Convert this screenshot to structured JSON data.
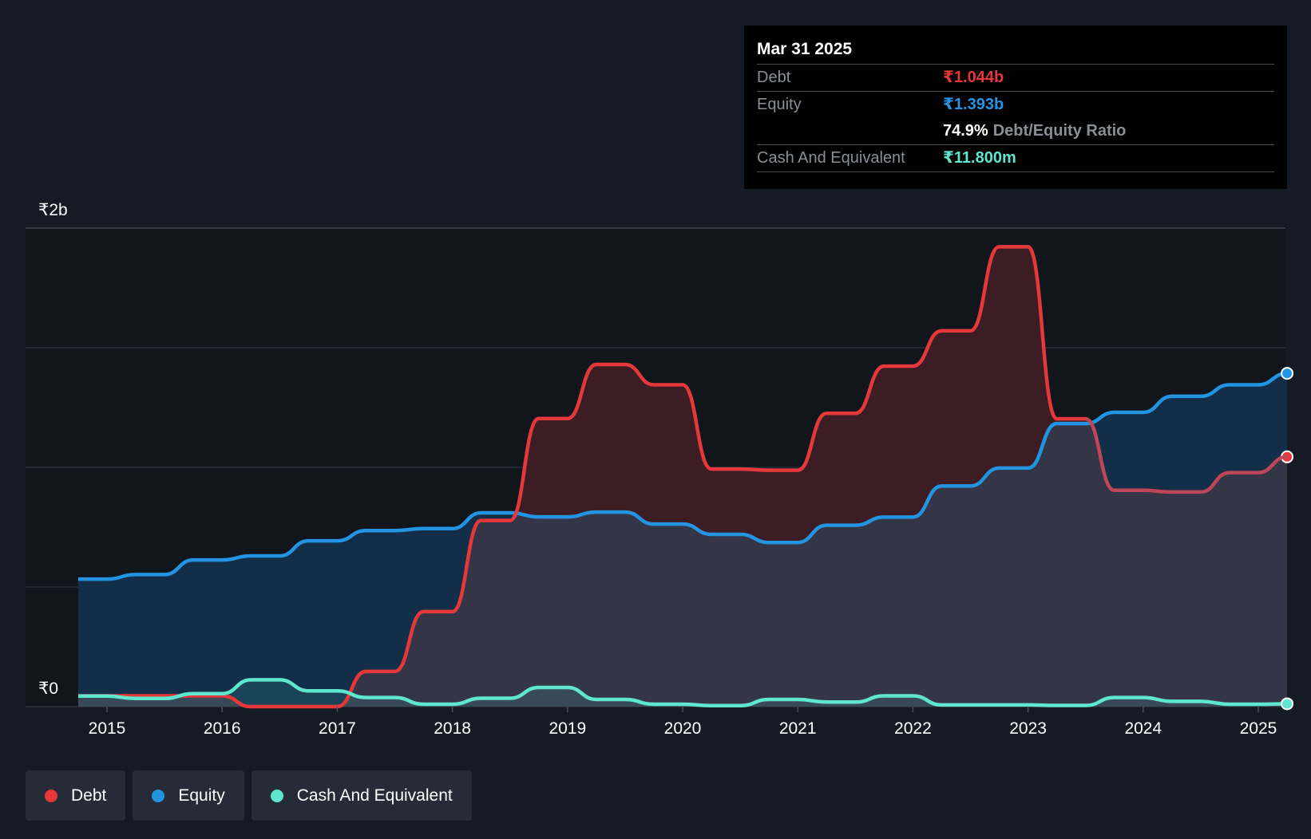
{
  "tooltip": {
    "date": "Mar 31 2025",
    "debt_label": "Debt",
    "debt_value": "₹1.044b",
    "equity_label": "Equity",
    "equity_value": "₹1.393b",
    "ratio_value": "74.9%",
    "ratio_label": "Debt/Equity Ratio",
    "cash_label": "Cash And Equivalent",
    "cash_value": "₹11.800m"
  },
  "legend": [
    {
      "label": "Debt",
      "color": "#e5383b"
    },
    {
      "label": "Equity",
      "color": "#2394e2"
    },
    {
      "label": "Cash And Equivalent",
      "color": "#5ee6cf"
    }
  ],
  "colors": {
    "debt": "#e5383b",
    "equity": "#2394e2",
    "cash": "#5ee6cf",
    "debt_fill": "#3d1d24",
    "equity_fill": "#132e48",
    "overlap_fill": "#343547"
  },
  "chart_data": {
    "type": "area",
    "title": "",
    "xlabel": "",
    "ylabel": "",
    "ylim": [
      0,
      2.0
    ],
    "xlim": [
      2014.3,
      2025.25
    ],
    "y_unit": "₹ billions",
    "y_tick_labels": [
      {
        "value": 2.0,
        "label": "₹2b"
      },
      {
        "value": 0,
        "label": "₹0"
      }
    ],
    "y_gridlines": [
      0,
      0.5,
      1.0,
      1.5,
      2.0
    ],
    "x_ticks": [
      {
        "value": 2015,
        "label": "2015"
      },
      {
        "value": 2016,
        "label": "2016"
      },
      {
        "value": 2017,
        "label": "2017"
      },
      {
        "value": 2018,
        "label": "2018"
      },
      {
        "value": 2019,
        "label": "2019"
      },
      {
        "value": 2020,
        "label": "2020"
      },
      {
        "value": 2021,
        "label": "2021"
      },
      {
        "value": 2022,
        "label": "2022"
      },
      {
        "value": 2023,
        "label": "2023"
      },
      {
        "value": 2024,
        "label": "2024"
      },
      {
        "value": 2025,
        "label": "2025"
      }
    ],
    "series": [
      {
        "name": "Debt",
        "points": [
          [
            2014.75,
            0.045
          ],
          [
            2015.25,
            0.045
          ],
          [
            2015.5,
            0.045
          ],
          [
            2016.0,
            0.045
          ],
          [
            2016.25,
            0.0
          ],
          [
            2017.0,
            0.0
          ],
          [
            2017.25,
            0.147
          ],
          [
            2017.5,
            0.147
          ],
          [
            2017.75,
            0.397
          ],
          [
            2018.0,
            0.397
          ],
          [
            2018.25,
            0.778
          ],
          [
            2018.5,
            0.778
          ],
          [
            2018.75,
            1.204
          ],
          [
            2019.0,
            1.204
          ],
          [
            2019.25,
            1.43
          ],
          [
            2019.5,
            1.43
          ],
          [
            2019.75,
            1.345
          ],
          [
            2020.0,
            1.345
          ],
          [
            2020.25,
            0.993
          ],
          [
            2020.5,
            0.993
          ],
          [
            2020.75,
            0.988
          ],
          [
            2021.0,
            0.988
          ],
          [
            2021.25,
            1.226
          ],
          [
            2021.5,
            1.226
          ],
          [
            2021.75,
            1.423
          ],
          [
            2022.0,
            1.423
          ],
          [
            2022.25,
            1.571
          ],
          [
            2022.5,
            1.571
          ],
          [
            2022.75,
            1.922
          ],
          [
            2023.0,
            1.922
          ],
          [
            2023.25,
            1.203
          ],
          [
            2023.5,
            1.203
          ],
          [
            2023.75,
            0.904
          ],
          [
            2024.0,
            0.904
          ],
          [
            2024.25,
            0.897
          ],
          [
            2024.5,
            0.897
          ],
          [
            2024.75,
            0.978
          ],
          [
            2025.0,
            0.978
          ],
          [
            2025.25,
            1.044
          ]
        ]
      },
      {
        "name": "Equity",
        "points": [
          [
            2014.75,
            0.533
          ],
          [
            2015.0,
            0.533
          ],
          [
            2015.25,
            0.552
          ],
          [
            2015.5,
            0.552
          ],
          [
            2015.75,
            0.613
          ],
          [
            2016.0,
            0.613
          ],
          [
            2016.25,
            0.63
          ],
          [
            2016.5,
            0.63
          ],
          [
            2016.75,
            0.693
          ],
          [
            2017.0,
            0.693
          ],
          [
            2017.25,
            0.736
          ],
          [
            2017.5,
            0.736
          ],
          [
            2017.75,
            0.744
          ],
          [
            2018.0,
            0.744
          ],
          [
            2018.25,
            0.81
          ],
          [
            2018.5,
            0.81
          ],
          [
            2018.75,
            0.793
          ],
          [
            2019.0,
            0.793
          ],
          [
            2019.25,
            0.813
          ],
          [
            2019.5,
            0.813
          ],
          [
            2019.75,
            0.763
          ],
          [
            2020.0,
            0.763
          ],
          [
            2020.25,
            0.72
          ],
          [
            2020.5,
            0.72
          ],
          [
            2020.75,
            0.686
          ],
          [
            2021.0,
            0.686
          ],
          [
            2021.25,
            0.758
          ],
          [
            2021.5,
            0.758
          ],
          [
            2021.75,
            0.792
          ],
          [
            2022.0,
            0.792
          ],
          [
            2022.25,
            0.922
          ],
          [
            2022.5,
            0.922
          ],
          [
            2022.75,
            0.997
          ],
          [
            2023.0,
            0.997
          ],
          [
            2023.25,
            1.183
          ],
          [
            2023.5,
            1.183
          ],
          [
            2023.75,
            1.23
          ],
          [
            2024.0,
            1.23
          ],
          [
            2024.25,
            1.297
          ],
          [
            2024.5,
            1.297
          ],
          [
            2024.75,
            1.345
          ],
          [
            2025.0,
            1.345
          ],
          [
            2025.25,
            1.393
          ]
        ]
      },
      {
        "name": "Cash And Equivalent",
        "points": [
          [
            2014.75,
            0.044
          ],
          [
            2015.0,
            0.044
          ],
          [
            2015.25,
            0.034
          ],
          [
            2015.5,
            0.034
          ],
          [
            2015.75,
            0.054
          ],
          [
            2016.0,
            0.054
          ],
          [
            2016.25,
            0.112
          ],
          [
            2016.5,
            0.112
          ],
          [
            2016.75,
            0.066
          ],
          [
            2017.0,
            0.066
          ],
          [
            2017.25,
            0.038
          ],
          [
            2017.5,
            0.038
          ],
          [
            2017.75,
            0.01
          ],
          [
            2018.0,
            0.01
          ],
          [
            2018.25,
            0.035
          ],
          [
            2018.5,
            0.035
          ],
          [
            2018.75,
            0.08
          ],
          [
            2019.0,
            0.08
          ],
          [
            2019.25,
            0.03
          ],
          [
            2019.5,
            0.03
          ],
          [
            2019.75,
            0.01
          ],
          [
            2020.0,
            0.01
          ],
          [
            2020.25,
            0.004
          ],
          [
            2020.5,
            0.004
          ],
          [
            2020.75,
            0.03
          ],
          [
            2021.0,
            0.03
          ],
          [
            2021.25,
            0.019
          ],
          [
            2021.5,
            0.019
          ],
          [
            2021.75,
            0.045
          ],
          [
            2022.0,
            0.045
          ],
          [
            2022.25,
            0.007
          ],
          [
            2022.5,
            0.007
          ],
          [
            2022.75,
            0.007
          ],
          [
            2023.0,
            0.007
          ],
          [
            2023.25,
            0.005
          ],
          [
            2023.5,
            0.005
          ],
          [
            2023.75,
            0.038
          ],
          [
            2024.0,
            0.038
          ],
          [
            2024.25,
            0.022
          ],
          [
            2024.5,
            0.022
          ],
          [
            2024.75,
            0.01
          ],
          [
            2025.0,
            0.01
          ],
          [
            2025.25,
            0.0118
          ]
        ]
      }
    ]
  }
}
